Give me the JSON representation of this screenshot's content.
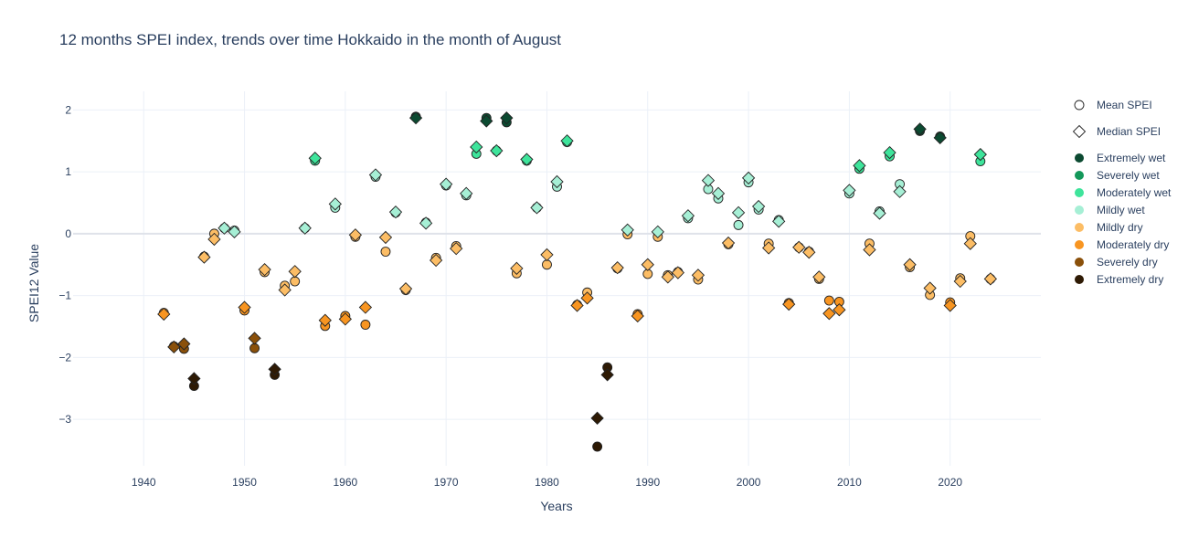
{
  "chart_data": {
    "type": "scatter",
    "title": "12 months SPEI index, trends over time Hokkaido in the month of August",
    "xlabel": "Years",
    "ylabel": "SPEI12 Value",
    "xlim": [
      1933,
      2029
    ],
    "ylim": [
      -3.75,
      2.3
    ],
    "x_ticks": [
      1940,
      1950,
      1960,
      1970,
      1980,
      1990,
      2000,
      2010,
      2020
    ],
    "y_ticks": [
      2,
      1,
      0,
      -1,
      -2,
      -3
    ],
    "y_tick_labels": [
      "2",
      "1",
      "0",
      "−1",
      "−2",
      "−3"
    ],
    "grid": true,
    "legend_position": "right",
    "symbol_legend": [
      {
        "name": "Mean SPEI",
        "symbol": "circle"
      },
      {
        "name": "Median SPEI",
        "symbol": "diamond"
      }
    ],
    "categories": [
      {
        "key": "ew",
        "name": "Extremely wet",
        "color": "#0c4a31"
      },
      {
        "key": "sw",
        "name": "Severely wet",
        "color": "#13985a"
      },
      {
        "key": "mw",
        "name": "Moderately wet",
        "color": "#3ee49b"
      },
      {
        "key": "lw",
        "name": "Mildly wet",
        "color": "#a6efd5"
      },
      {
        "key": "ld",
        "name": "Mildly dry",
        "color": "#fcbd65"
      },
      {
        "key": "md",
        "name": "Moderately dry",
        "color": "#f89521"
      },
      {
        "key": "sd",
        "name": "Severely dry",
        "color": "#8a500a"
      },
      {
        "key": "ed",
        "name": "Extremely dry",
        "color": "#2e1a04"
      }
    ],
    "series": [
      {
        "name": "Mean SPEI",
        "symbol": "circle",
        "points": [
          [
            1942,
            -1.28,
            "md"
          ],
          [
            1943,
            -1.82,
            "sd"
          ],
          [
            1944,
            -1.86,
            "sd"
          ],
          [
            1945,
            -2.46,
            "ed"
          ],
          [
            1946,
            -0.37,
            "ld"
          ],
          [
            1947,
            0.0,
            "ld"
          ],
          [
            1948,
            0.09,
            "lw"
          ],
          [
            1949,
            0.05,
            "lw"
          ],
          [
            1950,
            -1.24,
            "md"
          ],
          [
            1951,
            -1.85,
            "sd"
          ],
          [
            1952,
            -0.62,
            "ld"
          ],
          [
            1953,
            -2.28,
            "ed"
          ],
          [
            1954,
            -0.84,
            "ld"
          ],
          [
            1955,
            -0.77,
            "ld"
          ],
          [
            1956,
            0.09,
            "lw"
          ],
          [
            1957,
            1.18,
            "mw"
          ],
          [
            1958,
            -1.49,
            "md"
          ],
          [
            1959,
            0.42,
            "lw"
          ],
          [
            1960,
            -1.33,
            "md"
          ],
          [
            1961,
            -0.05,
            "ld"
          ],
          [
            1962,
            -1.47,
            "md"
          ],
          [
            1963,
            0.92,
            "lw"
          ],
          [
            1964,
            -0.29,
            "ld"
          ],
          [
            1965,
            0.34,
            "lw"
          ],
          [
            1966,
            -0.91,
            "ld"
          ],
          [
            1967,
            1.89,
            "ew"
          ],
          [
            1968,
            0.18,
            "lw"
          ],
          [
            1969,
            -0.39,
            "ld"
          ],
          [
            1970,
            0.78,
            "lw"
          ],
          [
            1971,
            -0.2,
            "ld"
          ],
          [
            1972,
            0.62,
            "lw"
          ],
          [
            1973,
            1.29,
            "mw"
          ],
          [
            1974,
            1.87,
            "ew"
          ],
          [
            1975,
            1.34,
            "mw"
          ],
          [
            1976,
            1.8,
            "ew"
          ],
          [
            1977,
            -0.64,
            "ld"
          ],
          [
            1978,
            1.18,
            "mw"
          ],
          [
            1979,
            0.42,
            "lw"
          ],
          [
            1980,
            -0.5,
            "ld"
          ],
          [
            1981,
            0.76,
            "lw"
          ],
          [
            1982,
            1.48,
            "mw"
          ],
          [
            1983,
            -1.15,
            "md"
          ],
          [
            1984,
            -0.95,
            "ld"
          ],
          [
            1985,
            -3.44,
            "ed"
          ],
          [
            1986,
            -2.16,
            "ed"
          ],
          [
            1987,
            -0.56,
            "ld"
          ],
          [
            1988,
            -0.01,
            "ld"
          ],
          [
            1989,
            -1.3,
            "md"
          ],
          [
            1990,
            -0.65,
            "ld"
          ],
          [
            1991,
            -0.05,
            "ld"
          ],
          [
            1992,
            -0.67,
            "ld"
          ],
          [
            1993,
            -0.62,
            "ld"
          ],
          [
            1994,
            0.25,
            "lw"
          ],
          [
            1995,
            -0.74,
            "ld"
          ],
          [
            1996,
            0.72,
            "lw"
          ],
          [
            1997,
            0.57,
            "lw"
          ],
          [
            1998,
            -0.17,
            "ld"
          ],
          [
            1999,
            0.14,
            "lw"
          ],
          [
            2000,
            0.83,
            "lw"
          ],
          [
            2001,
            0.39,
            "lw"
          ],
          [
            2002,
            -0.16,
            "ld"
          ],
          [
            2003,
            0.22,
            "lw"
          ],
          [
            2004,
            -1.12,
            "md"
          ],
          [
            2005,
            -0.22,
            "ld"
          ],
          [
            2006,
            -0.29,
            "ld"
          ],
          [
            2007,
            -0.73,
            "ld"
          ],
          [
            2008,
            -1.08,
            "md"
          ],
          [
            2009,
            -1.1,
            "md"
          ],
          [
            2010,
            0.65,
            "lw"
          ],
          [
            2011,
            1.05,
            "mw"
          ],
          [
            2012,
            -0.16,
            "ld"
          ],
          [
            2013,
            0.36,
            "lw"
          ],
          [
            2014,
            1.25,
            "mw"
          ],
          [
            2015,
            0.8,
            "lw"
          ],
          [
            2016,
            -0.54,
            "ld"
          ],
          [
            2017,
            1.66,
            "ew"
          ],
          [
            2018,
            -0.99,
            "ld"
          ],
          [
            2019,
            1.57,
            "ew"
          ],
          [
            2020,
            -1.11,
            "md"
          ],
          [
            2021,
            -0.72,
            "ld"
          ],
          [
            2022,
            -0.04,
            "ld"
          ],
          [
            2023,
            1.17,
            "mw"
          ],
          [
            2024,
            -0.73,
            "ld"
          ]
        ]
      },
      {
        "name": "Median SPEI",
        "symbol": "diamond",
        "points": [
          [
            1942,
            -1.3,
            "md"
          ],
          [
            1943,
            -1.83,
            "sd"
          ],
          [
            1944,
            -1.78,
            "sd"
          ],
          [
            1945,
            -2.34,
            "ed"
          ],
          [
            1946,
            -0.38,
            "ld"
          ],
          [
            1947,
            -0.09,
            "ld"
          ],
          [
            1948,
            0.09,
            "lw"
          ],
          [
            1949,
            0.03,
            "lw"
          ],
          [
            1950,
            -1.19,
            "md"
          ],
          [
            1951,
            -1.69,
            "sd"
          ],
          [
            1952,
            -0.58,
            "ld"
          ],
          [
            1953,
            -2.19,
            "ed"
          ],
          [
            1954,
            -0.91,
            "ld"
          ],
          [
            1955,
            -0.61,
            "ld"
          ],
          [
            1956,
            0.09,
            "lw"
          ],
          [
            1957,
            1.22,
            "mw"
          ],
          [
            1958,
            -1.4,
            "md"
          ],
          [
            1959,
            0.48,
            "lw"
          ],
          [
            1960,
            -1.38,
            "md"
          ],
          [
            1961,
            -0.02,
            "ld"
          ],
          [
            1962,
            -1.19,
            "md"
          ],
          [
            1963,
            0.95,
            "lw"
          ],
          [
            1964,
            -0.06,
            "ld"
          ],
          [
            1965,
            0.35,
            "lw"
          ],
          [
            1966,
            -0.89,
            "ld"
          ],
          [
            1967,
            1.87,
            "ew"
          ],
          [
            1968,
            0.17,
            "lw"
          ],
          [
            1969,
            -0.43,
            "ld"
          ],
          [
            1970,
            0.8,
            "lw"
          ],
          [
            1971,
            -0.24,
            "ld"
          ],
          [
            1972,
            0.65,
            "lw"
          ],
          [
            1973,
            1.4,
            "mw"
          ],
          [
            1974,
            1.82,
            "ew"
          ],
          [
            1975,
            1.34,
            "mw"
          ],
          [
            1976,
            1.87,
            "ew"
          ],
          [
            1977,
            -0.56,
            "ld"
          ],
          [
            1978,
            1.2,
            "mw"
          ],
          [
            1979,
            0.42,
            "lw"
          ],
          [
            1980,
            -0.34,
            "ld"
          ],
          [
            1981,
            0.84,
            "lw"
          ],
          [
            1982,
            1.5,
            "mw"
          ],
          [
            1983,
            -1.16,
            "md"
          ],
          [
            1984,
            -1.04,
            "md"
          ],
          [
            1985,
            -2.98,
            "ed"
          ],
          [
            1986,
            -2.28,
            "ed"
          ],
          [
            1987,
            -0.55,
            "ld"
          ],
          [
            1988,
            0.06,
            "lw"
          ],
          [
            1989,
            -1.33,
            "md"
          ],
          [
            1990,
            -0.5,
            "ld"
          ],
          [
            1991,
            0.03,
            "lw"
          ],
          [
            1992,
            -0.7,
            "ld"
          ],
          [
            1993,
            -0.63,
            "ld"
          ],
          [
            1994,
            0.29,
            "lw"
          ],
          [
            1995,
            -0.67,
            "ld"
          ],
          [
            1996,
            0.86,
            "lw"
          ],
          [
            1997,
            0.65,
            "lw"
          ],
          [
            1998,
            -0.15,
            "ld"
          ],
          [
            1999,
            0.34,
            "lw"
          ],
          [
            2000,
            0.9,
            "lw"
          ],
          [
            2001,
            0.44,
            "lw"
          ],
          [
            2002,
            -0.23,
            "ld"
          ],
          [
            2003,
            0.2,
            "lw"
          ],
          [
            2004,
            -1.14,
            "md"
          ],
          [
            2005,
            -0.22,
            "ld"
          ],
          [
            2006,
            -0.3,
            "ld"
          ],
          [
            2007,
            -0.7,
            "ld"
          ],
          [
            2008,
            -1.29,
            "md"
          ],
          [
            2009,
            -1.23,
            "md"
          ],
          [
            2010,
            0.7,
            "lw"
          ],
          [
            2011,
            1.1,
            "mw"
          ],
          [
            2012,
            -0.26,
            "ld"
          ],
          [
            2013,
            0.33,
            "lw"
          ],
          [
            2014,
            1.31,
            "mw"
          ],
          [
            2015,
            0.68,
            "lw"
          ],
          [
            2016,
            -0.5,
            "ld"
          ],
          [
            2017,
            1.69,
            "ew"
          ],
          [
            2018,
            -0.88,
            "ld"
          ],
          [
            2019,
            1.55,
            "ew"
          ],
          [
            2020,
            -1.16,
            "md"
          ],
          [
            2021,
            -0.77,
            "ld"
          ],
          [
            2022,
            -0.16,
            "ld"
          ],
          [
            2023,
            1.28,
            "mw"
          ],
          [
            2024,
            -0.73,
            "ld"
          ]
        ]
      }
    ]
  }
}
